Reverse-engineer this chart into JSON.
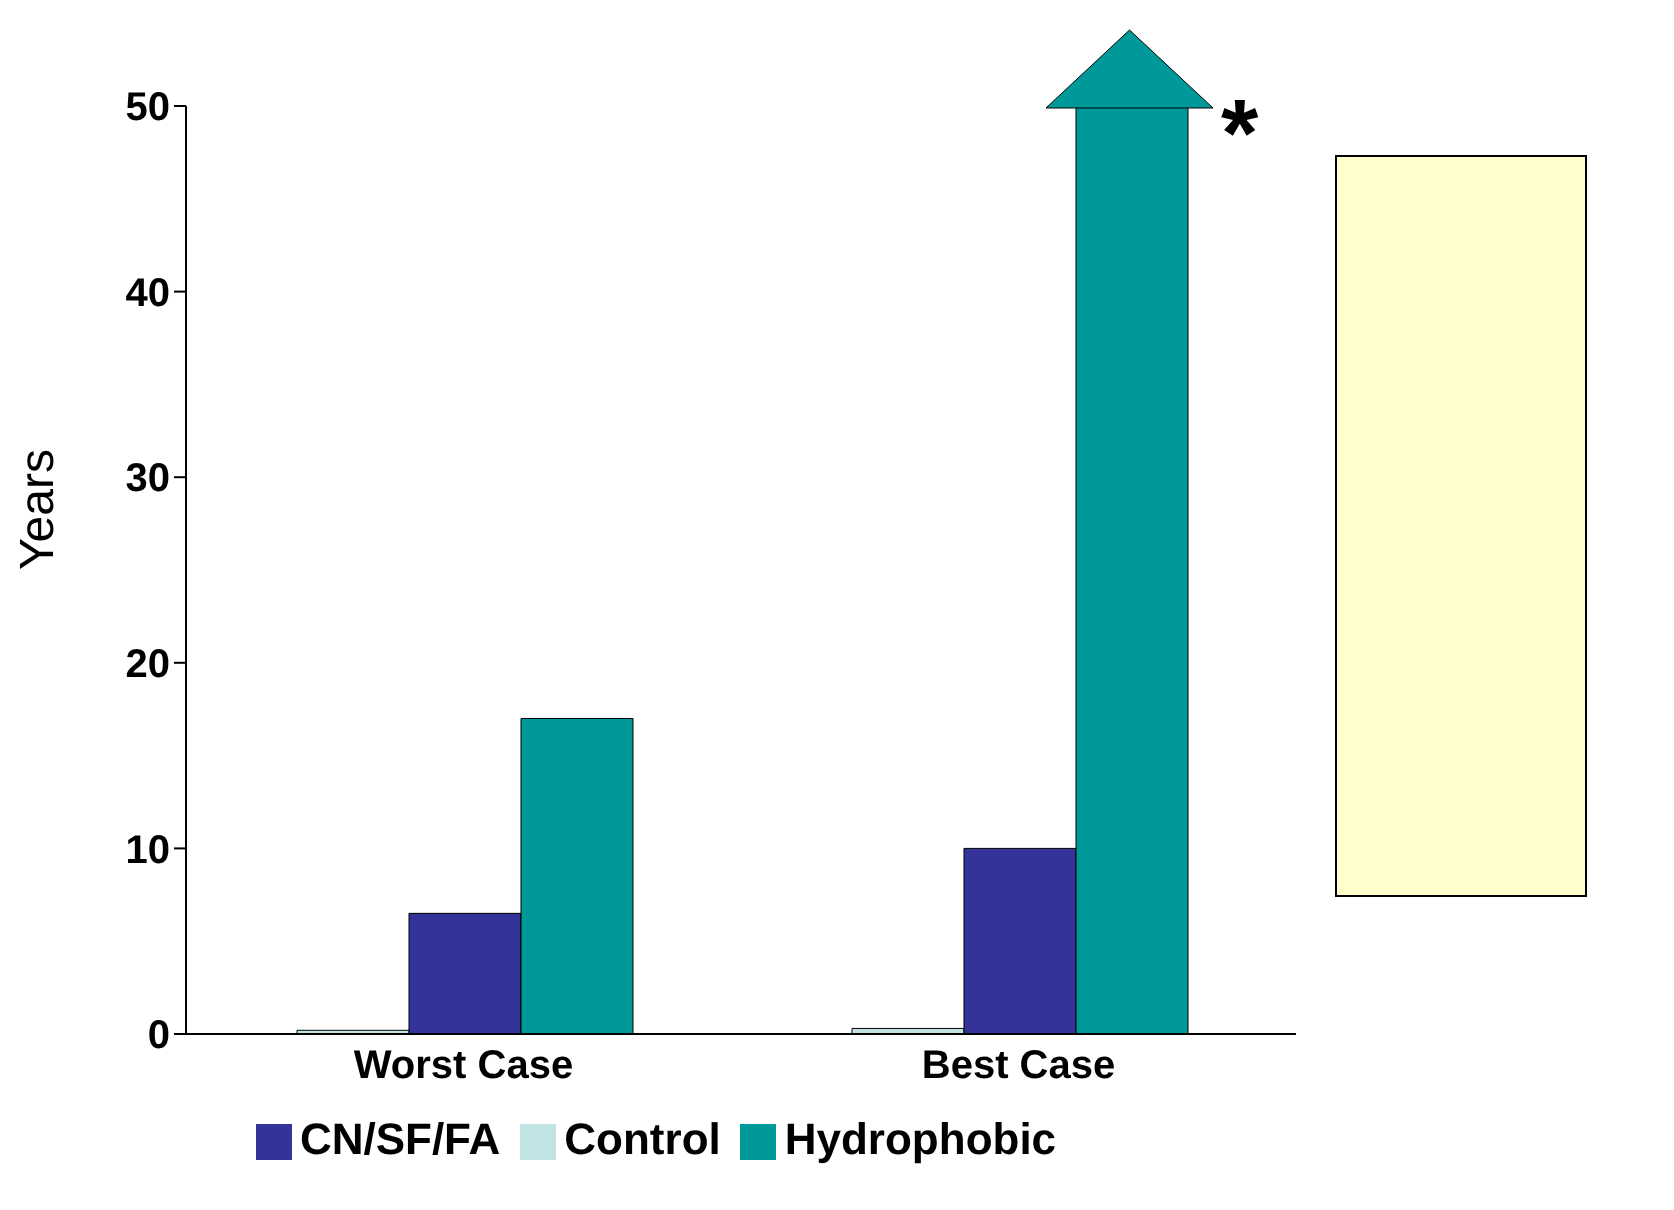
{
  "chart_data": {
    "type": "bar",
    "categories": [
      "Worst Case",
      "Best Case"
    ],
    "ylabel": "Years",
    "series": [
      {
        "name": "Control",
        "color": "#c0e4e4",
        "values": [
          0.2,
          0.3
        ]
      },
      {
        "name": "CN/SF/FA",
        "color": "#333399",
        "values": [
          6.5,
          10
        ]
      },
      {
        "name": "Hydrophobic",
        "color": "#009999",
        "values": [
          17,
          50
        ]
      }
    ],
    "ylim": [
      0,
      50
    ],
    "yticks": [
      0,
      10,
      20,
      30,
      40,
      50
    ],
    "legend": "bottom",
    "annotations": [
      "*"
    ]
  }
}
